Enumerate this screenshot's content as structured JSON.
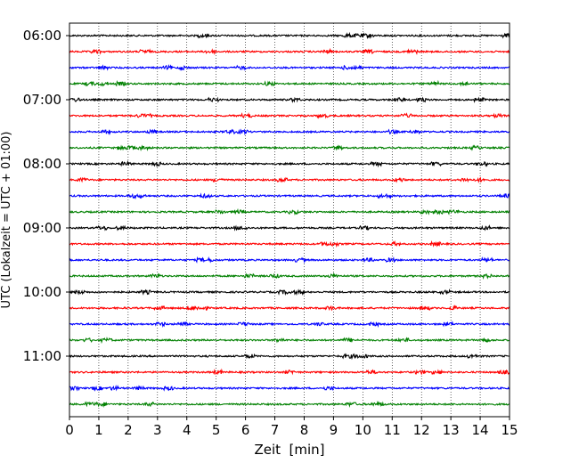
{
  "chart_data": {
    "type": "line",
    "title": "",
    "xlabel": "Zeit  [min]",
    "ylabel": "UTC (Lokalzeit = UTC + 01:00)",
    "xlim": [
      0,
      15
    ],
    "x_ticks": [
      "0",
      "1",
      "2",
      "3",
      "4",
      "5",
      "6",
      "7",
      "8",
      "9",
      "10",
      "11",
      "12",
      "13",
      "14",
      "15"
    ],
    "y_ticks": [
      "06:00",
      "07:00",
      "08:00",
      "09:00",
      "10:00",
      "11:00"
    ],
    "grid": "vertical dotted at each minute",
    "legend": "none",
    "trace_interval_minutes": 15,
    "series": [
      {
        "start": "06:00",
        "color": "#000000"
      },
      {
        "start": "06:15",
        "color": "#ff0000"
      },
      {
        "start": "06:30",
        "color": "#0000ff"
      },
      {
        "start": "06:45",
        "color": "#008000"
      },
      {
        "start": "07:00",
        "color": "#000000"
      },
      {
        "start": "07:15",
        "color": "#ff0000"
      },
      {
        "start": "07:30",
        "color": "#0000ff"
      },
      {
        "start": "07:45",
        "color": "#008000"
      },
      {
        "start": "08:00",
        "color": "#000000"
      },
      {
        "start": "08:15",
        "color": "#ff0000"
      },
      {
        "start": "08:30",
        "color": "#0000ff"
      },
      {
        "start": "08:45",
        "color": "#008000"
      },
      {
        "start": "09:00",
        "color": "#000000"
      },
      {
        "start": "09:15",
        "color": "#ff0000"
      },
      {
        "start": "09:30",
        "color": "#0000ff"
      },
      {
        "start": "09:45",
        "color": "#008000"
      },
      {
        "start": "10:00",
        "color": "#000000"
      },
      {
        "start": "10:15",
        "color": "#ff0000"
      },
      {
        "start": "10:30",
        "color": "#0000ff"
      },
      {
        "start": "10:45",
        "color": "#008000"
      },
      {
        "start": "11:00",
        "color": "#000000"
      },
      {
        "start": "11:15",
        "color": "#ff0000"
      },
      {
        "start": "11:30",
        "color": "#0000ff"
      },
      {
        "start": "11:45",
        "color": "#008000"
      }
    ]
  }
}
